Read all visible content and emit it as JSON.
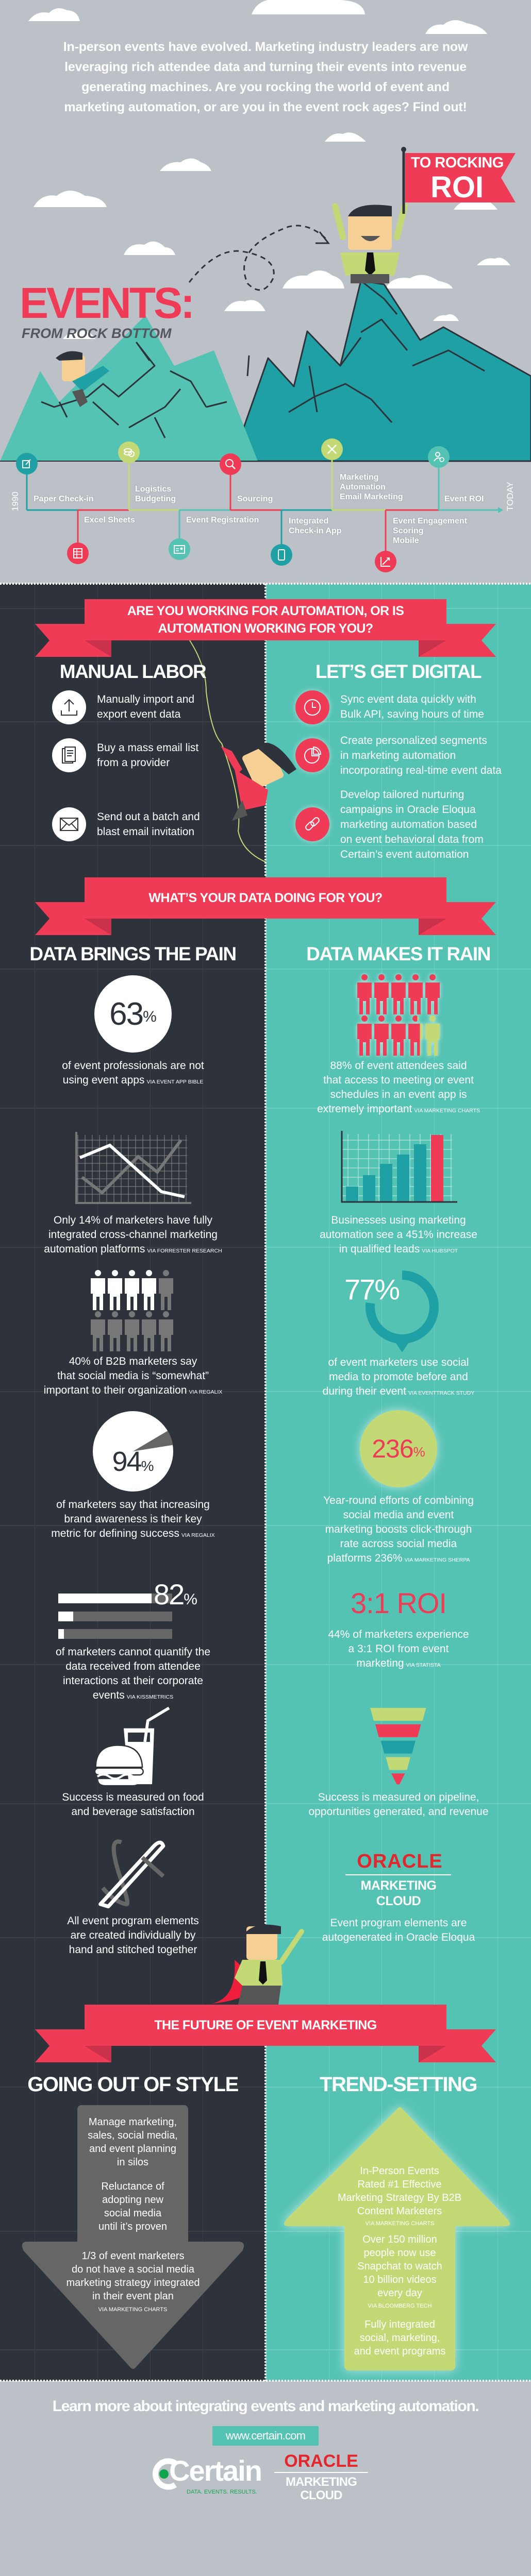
{
  "colors": {
    "gray_bg": "#bcc1c7",
    "dark": "#2e323a",
    "teal": "#55c3b4",
    "dark_teal": "#1ea0a5",
    "red": "#ef3b56",
    "lime": "#c3d975",
    "mid_gray": "#666666"
  },
  "intro": {
    "text": "In-person events have evolved. Marketing industry leaders are now\nleveraging rich attendee data and turning their events into revenue\ngenerating machines. Are you rocking the world of event and\nmarketing automation, or are you in the event rock ages? Find out!"
  },
  "hero": {
    "title": "EVENTS:",
    "subtitle": "FROM ROCK BOTTOM",
    "flag_line1": "TO ROCKING",
    "flag_line2": "ROI"
  },
  "timeline": {
    "start": "1990",
    "end": "TODAY",
    "top": [
      {
        "label": "Paper Check-in",
        "icon": "clipboard-pen-icon"
      },
      {
        "label": "Logistics\nBudgeting",
        "icon": "coins-icon"
      },
      {
        "label": "Sourcing",
        "icon": "magnifier-icon"
      },
      {
        "label": "Marketing\nAutomation\nEmail Marketing",
        "icon": "tools-icon"
      },
      {
        "label": "Event ROI",
        "icon": "user-add-icon"
      }
    ],
    "bottom": [
      {
        "label": "Excel Sheets",
        "icon": "spreadsheet-icon"
      },
      {
        "label": "Event Registration",
        "icon": "id-badge-icon"
      },
      {
        "label": "Integrated\nCheck-in App",
        "icon": "mobile-icon"
      },
      {
        "label": "Event Engagement\nScoring\nMobile",
        "icon": "growth-chart-icon"
      }
    ]
  },
  "automation": {
    "banner": "ARE YOU WORKING FOR AUTOMATION, OR IS\nAUTOMATION WORKING FOR YOU?",
    "left_heading": "MANUAL LABOR",
    "right_heading": "LET’S GET DIGITAL",
    "left_items": [
      {
        "text": "Manually import and\nexport event data",
        "icon": "upload-icon"
      },
      {
        "text": "Buy a mass email list\nfrom a provider",
        "icon": "document-list-icon"
      },
      {
        "text": "Send out a batch and\nblast email invitation",
        "icon": "envelope-icon"
      }
    ],
    "right_items": [
      {
        "text": "Sync event data quickly with\nBulk API, saving hours of time",
        "icon": "clock-icon"
      },
      {
        "text": "Create personalized segments\nin marketing automation\nincorporating real-time event data",
        "icon": "pie-chart-icon"
      },
      {
        "text": "Develop tailored nurturing\ncampaigns in Oracle Eloqua\nmarketing automation based\non event behavioral data from\nCertain’s event automation",
        "icon": "link-icon"
      }
    ]
  },
  "data_section": {
    "banner": "WHAT’S YOUR DATA DOING FOR YOU?",
    "left_heading": "DATA BRINGS THE PAIN",
    "right_heading": "DATA MAKES IT RAIN",
    "left": [
      {
        "big": "63",
        "unit": "%",
        "text": "of event professionals are not\nusing event apps",
        "source": "VIA EVENT APP BIBLE",
        "value_percent": 63
      },
      {
        "text": "Only 14% of marketers have fully\nintegrated cross-channel marketing\nautomation platforms",
        "source": "VIA FORRESTER RESEARCH",
        "icon": "line-chart-icon"
      },
      {
        "text": "40% of B2B marketers say\nthat social media is “somewhat”\nimportant to their organization",
        "source": "VIA REGALIX",
        "icon": "people-grid-icon",
        "value_percent": 40
      },
      {
        "big": "94",
        "unit": "%",
        "text": "of marketers say that increasing\nbrand awareness is their key\nmetric for defining success",
        "source": "VIA REGALIX",
        "value_percent": 94
      },
      {
        "big": "82",
        "unit": "%",
        "text": "of marketers cannot quantify the\ndata received from attendee\ninteractions at their corporate\nevents",
        "source": "VIA KISSMETRICS",
        "value_percent": 82
      },
      {
        "text": "Success is measured on food\nand beverage satisfaction",
        "icon": "burger-drink-icon"
      },
      {
        "text": "All event program elements\nare created individually by\nhand and stitched together",
        "icon": "needle-thread-icon"
      }
    ],
    "right": [
      {
        "text": "88% of event attendees said\nthat access to meeting or event\nschedules in an event app is\nextremely important",
        "source": "VIA MARKETING CHARTS",
        "icon": "people-grid-icon",
        "value_percent": 88
      },
      {
        "text": "Businesses using marketing\nautomation see a 451% increase\nin qualified leads",
        "source": "VIA HUBSPOT",
        "icon": "bar-chart-icon"
      },
      {
        "big": "77%",
        "text": "of event marketers use social\nmedia to promote before and\nduring their event",
        "source": "VIA EVENTTRACK STUDY",
        "icon": "map-pin-ring-icon",
        "value_percent": 77
      },
      {
        "big": "236",
        "unit": "%",
        "text": "Year-round efforts of combining\nsocial media and event\nmarketing boosts click-through\nrate across social media\nplatforms 236%",
        "source": "VIA MARKETING SHERPA"
      },
      {
        "big": "3:1 ROI",
        "text": "44% of marketers experience\na 3:1 ROI from event\nmarketing",
        "source": "VIA STATISTA"
      },
      {
        "text": "Success is measured on pipeline,\nopportunities generated, and revenue",
        "icon": "funnel-icon"
      },
      {
        "logo_word": "ORACLE",
        "logo_sub": "MARKETING\nCLOUD",
        "text": "Event program elements are\nautogenerated in Oracle Eloqua"
      }
    ]
  },
  "future": {
    "banner": "THE FUTURE OF EVENT MARKETING",
    "left_heading": "GOING OUT OF STYLE",
    "right_heading": "TREND-SETTING",
    "left_items": [
      {
        "text": "Manage marketing,\nsales, social media,\nand event planning\nin silos"
      },
      {
        "text": "Reluctance of\nadopting new\nsocial media\nuntil it’s proven"
      },
      {
        "text": "1/3 of event marketers\ndo not have a social media\nmarketing strategy integrated\nin their event plan",
        "source": "VIA MARKETING CHARTS"
      }
    ],
    "right_items": [
      {
        "text": "In-Person Events\nRated #1 Effective\nMarketing Strategy By B2B\nContent Marketers",
        "source": "VIA MARKETING CHARTS"
      },
      {
        "text": "Over 150 million\npeople now use\nSnapchat to watch\n10 billion videos\nevery day",
        "source": "VIA BLOOMBERG TECH"
      },
      {
        "text": "Fully integrated\nsocial, marketing,\nand event programs"
      }
    ]
  },
  "footer": {
    "cta": "Learn more about integrating events and marketing automation.",
    "url": "www.certain.com",
    "certain_logo": "Certain",
    "certain_tagline": "DATA. EVENTS. RESULTS.",
    "oracle_logo": "ORACLE",
    "oracle_sub": "MARKETING\nCLOUD"
  }
}
